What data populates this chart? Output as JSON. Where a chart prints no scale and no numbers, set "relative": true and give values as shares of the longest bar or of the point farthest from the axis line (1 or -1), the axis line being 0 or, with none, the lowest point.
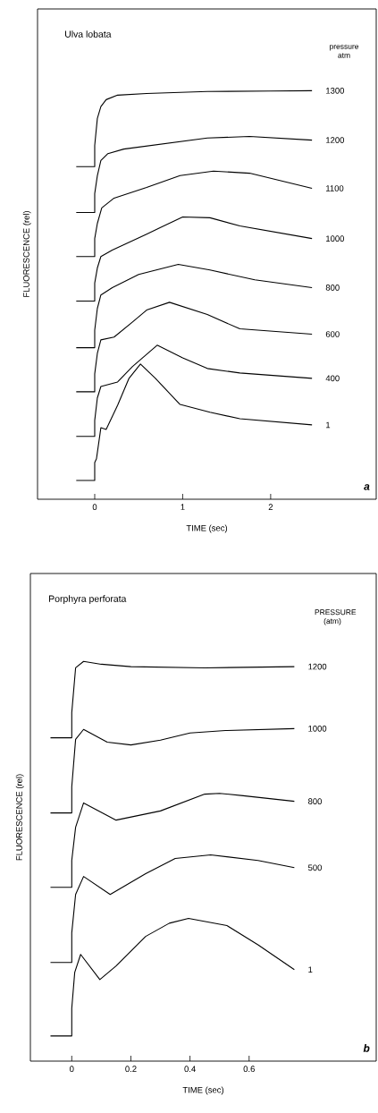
{
  "chart_data": [
    {
      "type": "line",
      "title": "Ulva lobata",
      "xlabel": "TIME (sec)",
      "ylabel": "FLUORESCENCE (rel)",
      "legend_title": "pressure atm",
      "annotations": [
        "a"
      ],
      "relative": true,
      "xlim": [
        -0.65,
        3.2
      ],
      "xticks": [
        0,
        1,
        2
      ],
      "series": [
        {
          "name": "1300",
          "color": "#000000",
          "x": [
            -0.21,
            0,
            0,
            0.03,
            0.07,
            0.13,
            0.26,
            0.59,
            1.28,
            2.0,
            2.47
          ],
          "values": [
            0.814,
            0.814,
            0.866,
            0.932,
            0.961,
            0.978,
            0.989,
            0.993,
            0.998,
            0.999,
            1.0
          ]
        },
        {
          "name": "1200",
          "color": "#000000",
          "x": [
            -0.21,
            0,
            0,
            0.03,
            0.07,
            0.15,
            0.33,
            1.28,
            1.76,
            2.47
          ],
          "values": [
            0.702,
            0.702,
            0.748,
            0.792,
            0.829,
            0.846,
            0.857,
            0.884,
            0.888,
            0.879
          ]
        },
        {
          "name": "1100",
          "color": "#000000",
          "x": [
            -0.21,
            0,
            0,
            0.03,
            0.08,
            0.22,
            0.59,
            0.97,
            1.35,
            1.76,
            2.47
          ],
          "values": [
            0.594,
            0.594,
            0.638,
            0.675,
            0.713,
            0.737,
            0.763,
            0.792,
            0.803,
            0.798,
            0.761
          ]
        },
        {
          "name": "1000",
          "color": "#000000",
          "x": [
            -0.21,
            0,
            0,
            0.03,
            0.07,
            0.2,
            0.59,
            1.0,
            1.31,
            1.65,
            2.47
          ],
          "values": [
            0.485,
            0.485,
            0.529,
            0.566,
            0.594,
            0.61,
            0.649,
            0.691,
            0.689,
            0.669,
            0.638
          ]
        },
        {
          "name": "800",
          "color": "#000000",
          "x": [
            -0.21,
            0,
            0,
            0.03,
            0.07,
            0.2,
            0.5,
            0.95,
            1.31,
            1.82,
            2.47
          ],
          "values": [
            0.371,
            0.371,
            0.414,
            0.467,
            0.5,
            0.518,
            0.55,
            0.575,
            0.561,
            0.537,
            0.518
          ]
        },
        {
          "name": "600",
          "color": "#000000",
          "x": [
            -0.21,
            0,
            0,
            0.03,
            0.07,
            0.22,
            0.43,
            0.59,
            0.85,
            1.28,
            1.65,
            2.47
          ],
          "values": [
            0.263,
            0.263,
            0.307,
            0.357,
            0.39,
            0.397,
            0.434,
            0.463,
            0.482,
            0.452,
            0.417,
            0.404
          ]
        },
        {
          "name": "400",
          "color": "#000000",
          "x": [
            -0.21,
            0,
            0,
            0.03,
            0.07,
            0.26,
            0.43,
            0.71,
            1.0,
            1.28,
            1.65,
            2.47
          ],
          "values": [
            0.154,
            0.154,
            0.193,
            0.248,
            0.276,
            0.287,
            0.325,
            0.377,
            0.346,
            0.32,
            0.309,
            0.296
          ]
        },
        {
          "name": "1",
          "color": "#000000",
          "x": [
            -0.21,
            0,
            0,
            0.02,
            0.07,
            0.13,
            0.26,
            0.39,
            0.52,
            0.69,
            0.97,
            1.31,
            1.65,
            2.47
          ],
          "values": [
            0.046,
            0.046,
            0.09,
            0.099,
            0.175,
            0.171,
            0.23,
            0.296,
            0.331,
            0.296,
            0.232,
            0.213,
            0.197,
            0.182
          ]
        }
      ]
    },
    {
      "type": "line",
      "title": "Porphyra perforata",
      "xlabel": "TIME (sec)",
      "ylabel": "FLUORESCENCE (rel)",
      "legend_title": "PRESSURE (atm)",
      "annotations": [
        "b"
      ],
      "relative": true,
      "xlim": [
        -0.14,
        1.03
      ],
      "xticks": [
        0,
        0.2,
        0.4,
        0.6
      ],
      "series": [
        {
          "name": "1200",
          "color": "#000000",
          "x": [
            -0.072,
            0,
            0,
            0.013,
            0.04,
            0.1,
            0.2,
            0.45,
            0.753
          ],
          "values": [
            0.809,
            0.809,
            0.872,
            0.984,
            1.0,
            0.993,
            0.987,
            0.984,
            0.987
          ]
        },
        {
          "name": "1000",
          "color": "#000000",
          "x": [
            -0.072,
            0,
            0,
            0.013,
            0.04,
            0.12,
            0.2,
            0.3,
            0.4,
            0.52,
            0.753
          ],
          "values": [
            0.621,
            0.621,
            0.686,
            0.805,
            0.83,
            0.798,
            0.791,
            0.803,
            0.821,
            0.827,
            0.832
          ]
        },
        {
          "name": "800",
          "color": "#000000",
          "x": [
            -0.072,
            0,
            0,
            0.013,
            0.04,
            0.15,
            0.3,
            0.45,
            0.5,
            0.58,
            0.753
          ],
          "values": [
            0.435,
            0.435,
            0.502,
            0.585,
            0.646,
            0.603,
            0.626,
            0.668,
            0.67,
            0.664,
            0.65
          ]
        },
        {
          "name": "500",
          "color": "#000000",
          "x": [
            -0.072,
            0,
            0,
            0.013,
            0.04,
            0.13,
            0.25,
            0.35,
            0.47,
            0.63,
            0.753
          ],
          "values": [
            0.247,
            0.247,
            0.321,
            0.417,
            0.462,
            0.417,
            0.469,
            0.507,
            0.516,
            0.502,
            0.484
          ]
        },
        {
          "name": "1",
          "color": "#000000",
          "x": [
            -0.072,
            0,
            0,
            0.01,
            0.03,
            0.095,
            0.15,
            0.25,
            0.33,
            0.395,
            0.525,
            0.63,
            0.753
          ],
          "values": [
            0.063,
            0.063,
            0.132,
            0.222,
            0.267,
            0.204,
            0.238,
            0.312,
            0.345,
            0.357,
            0.339,
            0.291,
            0.229
          ]
        }
      ]
    }
  ]
}
